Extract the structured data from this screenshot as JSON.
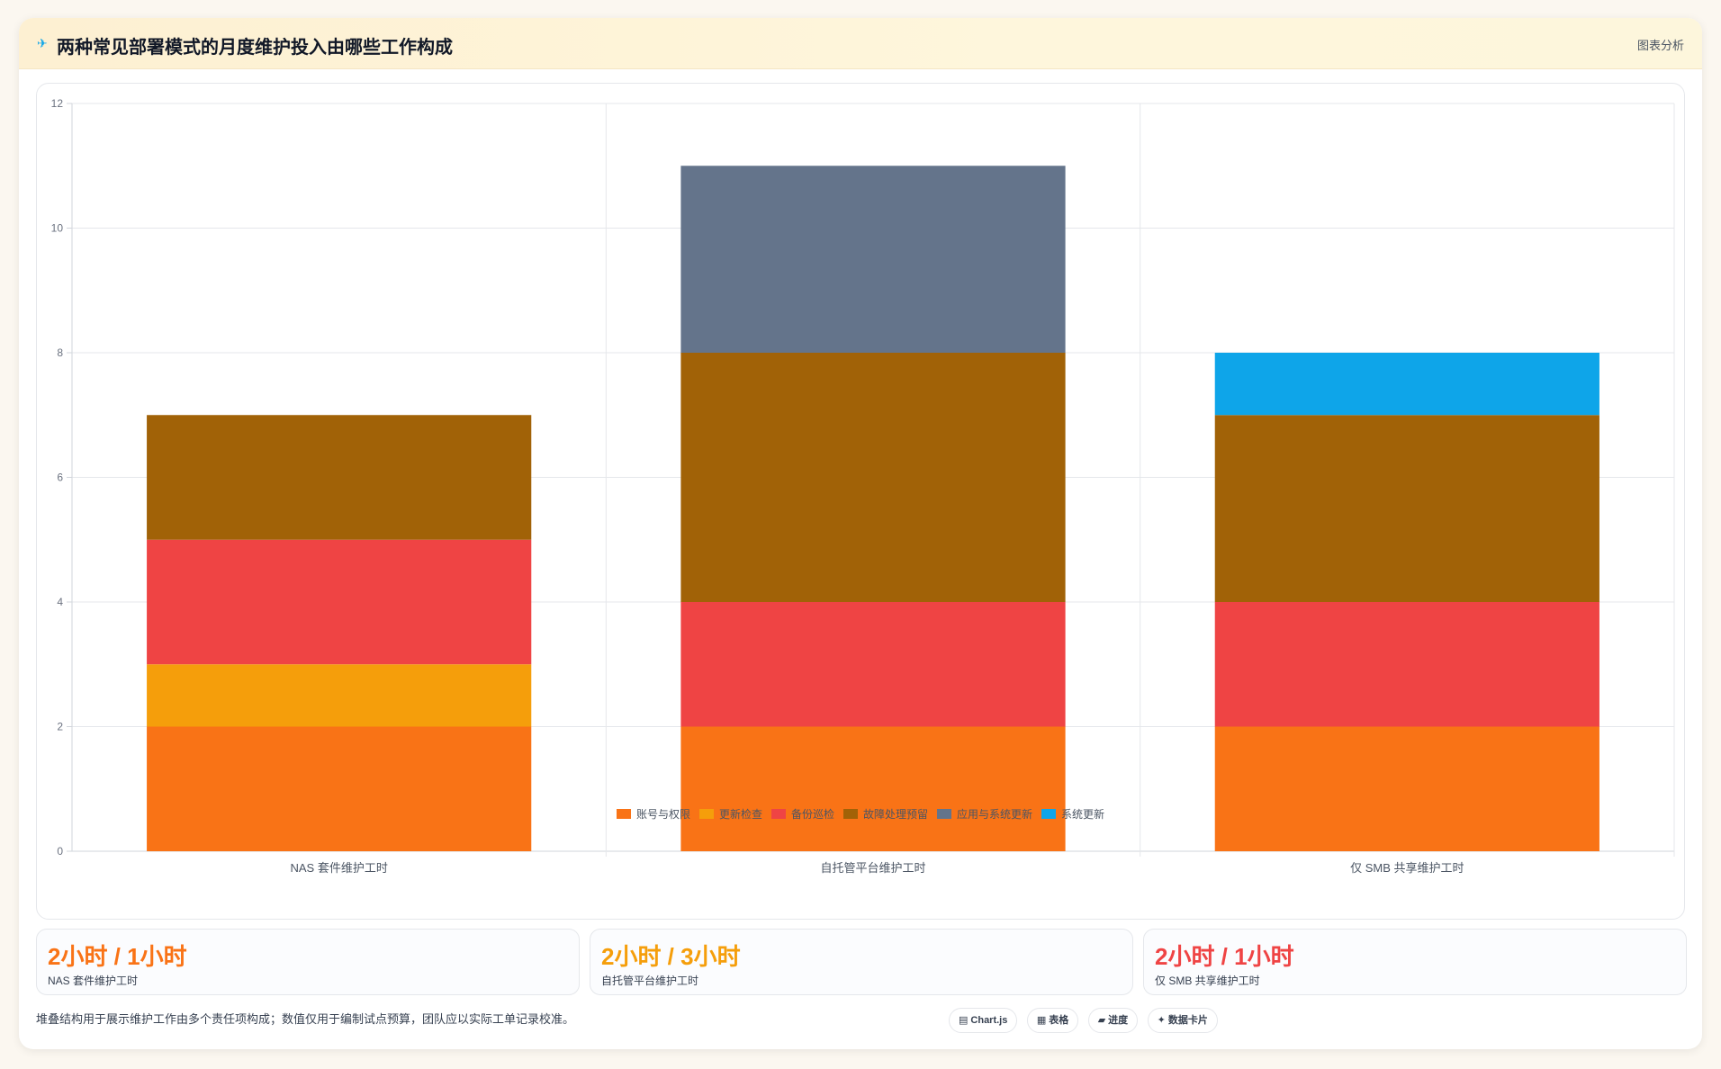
{
  "header": {
    "title": "两种常见部署模式的月度维护投入由哪些工作构成",
    "tag": "图表分析",
    "icon": "sparkle-icon"
  },
  "chart_data": {
    "type": "bar",
    "stacked": true,
    "title": "",
    "xlabel": "",
    "ylabel": "",
    "ylim": [
      0,
      12
    ],
    "yticks": [
      0,
      2,
      4,
      6,
      8,
      10,
      12
    ],
    "grid": true,
    "legend_position": "bottom",
    "categories": [
      "NAS 套件维护工时",
      "自托管平台维护工时",
      "仅 SMB 共享维护工时"
    ],
    "series": [
      {
        "name": "账号与权限",
        "color": "#f97316",
        "values": [
          2,
          2,
          2
        ]
      },
      {
        "name": "更新检查",
        "color": "#f59e0b",
        "values": [
          1,
          0,
          0
        ]
      },
      {
        "name": "备份巡检",
        "color": "#ef4444",
        "values": [
          2,
          2,
          2
        ]
      },
      {
        "name": "故障处理预留",
        "color": "#a16207",
        "values": [
          2,
          4,
          3
        ]
      },
      {
        "name": "应用与系统更新",
        "color": "#64748b",
        "values": [
          0,
          3,
          0
        ]
      },
      {
        "name": "系统更新",
        "color": "#0ea5e9",
        "values": [
          0,
          0,
          1
        ]
      }
    ]
  },
  "stats": [
    {
      "value": "2小时 / 1小时",
      "label": "NAS 套件维护工时",
      "color": "#f97316"
    },
    {
      "value": "2小时 / 3小时",
      "label": "自托管平台维护工时",
      "color": "#f59e0b"
    },
    {
      "value": "2小时 / 1小时",
      "label": "仅 SMB 共享维护工时",
      "color": "#ef4444"
    }
  ],
  "footnote": "堆叠结构用于展示维护工作由多个责任项构成；数值仅用于编制试点预算，团队应以实际工单记录校准。",
  "pills": [
    {
      "icon": "▤",
      "label": "Chart.js"
    },
    {
      "icon": "▦",
      "label": "表格"
    },
    {
      "icon": "▰",
      "label": "进度"
    },
    {
      "icon": "✦",
      "label": "数据卡片"
    }
  ]
}
